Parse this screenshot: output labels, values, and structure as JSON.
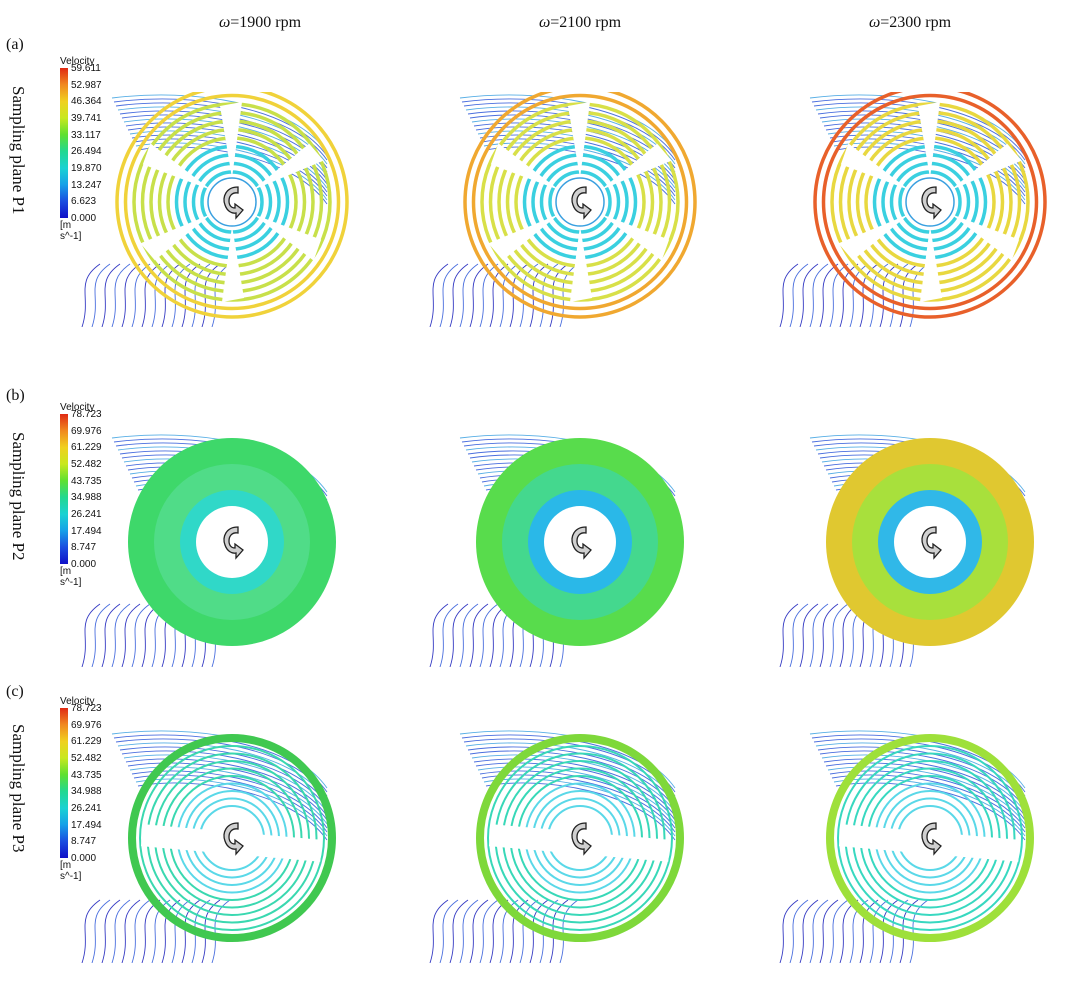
{
  "columns": [
    {
      "symbol": "ω",
      "value": "=1900 rpm"
    },
    {
      "symbol": "ω",
      "value": "=2100 rpm"
    },
    {
      "symbol": "ω",
      "value": "=2300 rpm"
    }
  ],
  "rows": [
    {
      "tag": "(a)",
      "label": "Sampling plane P1",
      "legend": {
        "title": "Velocity",
        "unit": "[m s^-1]",
        "ticks": [
          "59.611",
          "52.987",
          "46.364",
          "39.741",
          "33.117",
          "26.494",
          "19.870",
          "13.247",
          "6.623",
          "0.000"
        ]
      }
    },
    {
      "tag": "(b)",
      "label": "Sampling plane P2",
      "legend": {
        "title": "Velocity",
        "unit": "[m s^-1]",
        "ticks": [
          "78.723",
          "69.976",
          "61.229",
          "52.482",
          "43.735",
          "34.988",
          "26.241",
          "17.494",
          "8.747",
          "0.000"
        ]
      }
    },
    {
      "tag": "(c)",
      "label": "Sampling plane P3",
      "legend": {
        "title": "Velocity",
        "unit": "[m s^-1]",
        "ticks": [
          "78.723",
          "69.976",
          "61.229",
          "52.482",
          "43.735",
          "34.988",
          "26.241",
          "17.494",
          "8.747",
          "0.000"
        ]
      }
    }
  ],
  "colors": {
    "scale": [
      "#1010c8",
      "#1a4de0",
      "#16a0e8",
      "#1ad2d2",
      "#22d890",
      "#5ee030",
      "#c8e81e",
      "#f0d020",
      "#f08820",
      "#e02a14"
    ],
    "streamline": "#2a55d8",
    "streamline_light": "#3aa0e0"
  },
  "panels": [
    [
      {
        "type": "fan",
        "ring": "#c8e04a",
        "edge": "#f0d23a"
      },
      {
        "type": "fan",
        "ring": "#d8e048",
        "edge": "#f0a830"
      },
      {
        "type": "fan",
        "ring": "#e8d840",
        "edge": "#e8602a"
      }
    ],
    [
      {
        "type": "disk",
        "outer": "#3ed86a",
        "mid": "#50dc88",
        "inner": "#30d8c8"
      },
      {
        "type": "disk",
        "outer": "#58dc4c",
        "mid": "#44d88e",
        "inner": "#2ab8e8"
      },
      {
        "type": "disk",
        "outer": "#e0c830",
        "mid": "#a8e03c",
        "inner": "#30b8e8"
      }
    ],
    [
      {
        "type": "slot",
        "outer": "#40c850",
        "ring": "#3ad8b0"
      },
      {
        "type": "slot",
        "outer": "#7ed83a",
        "ring": "#38d8b8"
      },
      {
        "type": "slot",
        "outer": "#9ee03a",
        "ring": "#38d8c0"
      }
    ]
  ],
  "icon": "rotation-arrow-icon"
}
